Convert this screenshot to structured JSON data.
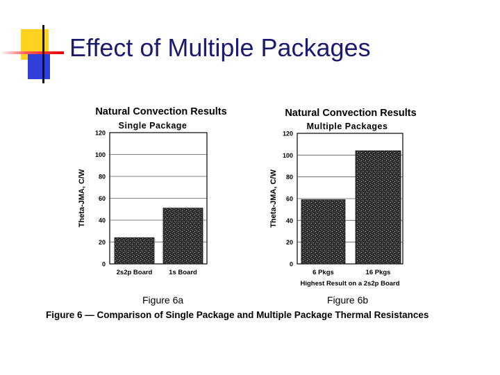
{
  "slide": {
    "title": "Effect of Multiple Packages",
    "figure_a_label": "Figure 6a",
    "figure_b_label": "Figure 6b",
    "caption": "Figure 6 — Comparison of Single Package and Multiple Package Thermal Resistances"
  },
  "chart_data": [
    {
      "type": "bar",
      "title": "Natural Convection Results",
      "subtitle": "Single Package",
      "ylabel": "Theta-JMA, C/W",
      "xlabel": "",
      "categories": [
        "2s2p Board",
        "1s Board"
      ],
      "values": [
        24,
        51
      ],
      "ylim": [
        0,
        120
      ],
      "yticks": [
        0,
        20,
        40,
        60,
        80,
        100,
        120
      ],
      "grid": true,
      "bar_color": "#3a3a3a"
    },
    {
      "type": "bar",
      "title": "Natural Convection Results",
      "subtitle": "Multiple Packages",
      "ylabel": "Theta-JMA, C/W",
      "xlabel": "Highest Result on a 2s2p Board",
      "categories": [
        "6 Pkgs",
        "16 Pkgs"
      ],
      "values": [
        59,
        104
      ],
      "ylim": [
        0,
        120
      ],
      "yticks": [
        0,
        20,
        40,
        60,
        80,
        100,
        120
      ],
      "grid": true,
      "bar_color": "#3a3a3a"
    }
  ]
}
